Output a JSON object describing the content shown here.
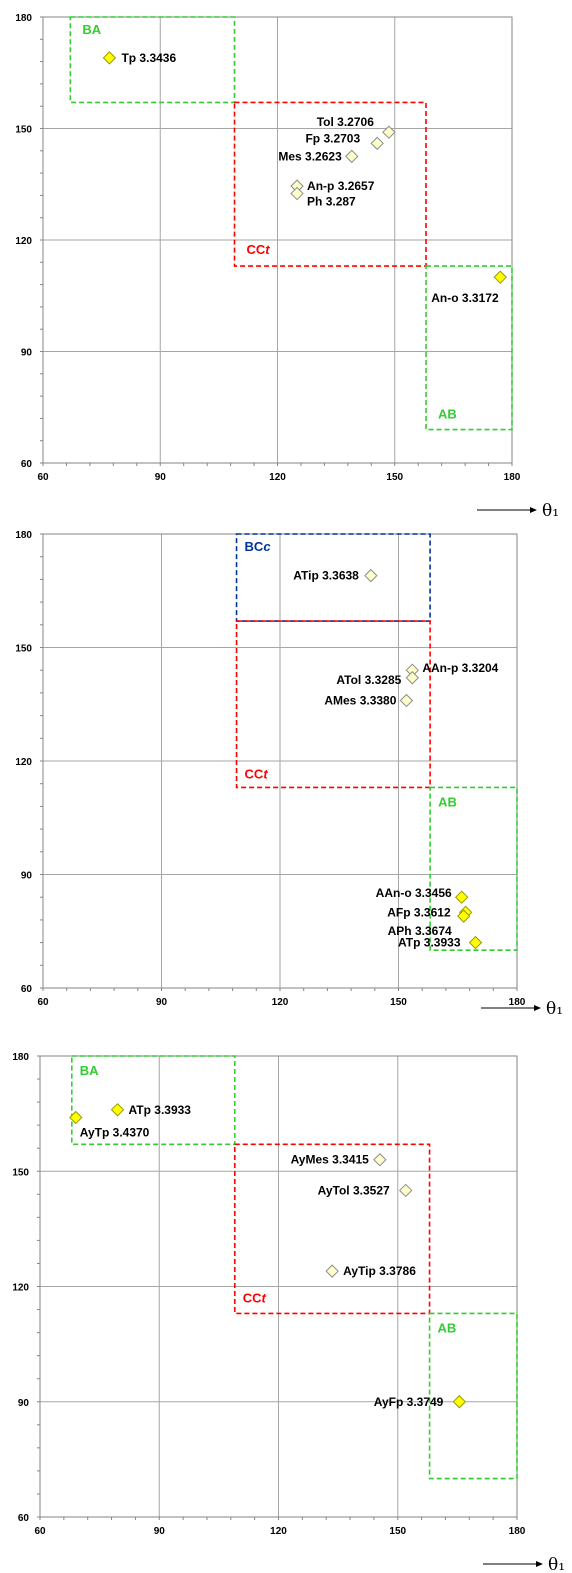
{
  "colors": {
    "grid": "#a6a6a6",
    "frame": "#868686",
    "region_green": "#33cc33",
    "region_red": "#ff0000",
    "region_blue": "#003399",
    "marker_yellow": "#ffff00",
    "marker_yellow_stroke": "#999900",
    "marker_pale": "#ffffcc",
    "marker_pale_stroke": "#8c8c8c"
  },
  "axis_arrow_label": "θ₁",
  "chart_data": [
    {
      "type": "scatter",
      "xlim": [
        60,
        180
      ],
      "ylim": [
        60,
        180
      ],
      "xticks": [
        "60",
        "90",
        "120",
        "150",
        "180"
      ],
      "yticks": [
        "60",
        "90",
        "120",
        "150",
        "180"
      ],
      "grid": true,
      "xlabel": "θ₁",
      "regions": [
        {
          "label": "BA",
          "color": "green",
          "x": [
            67,
            109
          ],
          "y": [
            157,
            180
          ]
        },
        {
          "label": "CCt",
          "color": "red",
          "x": [
            109,
            158
          ],
          "y": [
            113,
            157
          ]
        },
        {
          "label": "AB",
          "color": "green",
          "x": [
            158,
            180
          ],
          "y": [
            69,
            113
          ]
        }
      ],
      "points": [
        {
          "label": "Tp 3.3436",
          "x": 77,
          "y": 169,
          "filled": true
        },
        {
          "label": "Tol 3.2706",
          "x": 148.5,
          "y": 149,
          "filled": false
        },
        {
          "label": "Fp 3.2703",
          "x": 145.5,
          "y": 146,
          "filled": false
        },
        {
          "label": "Mes 3.2623",
          "x": 139,
          "y": 142.5,
          "filled": false
        },
        {
          "label": "An-p 3.2657",
          "x": 125,
          "y": 134.5,
          "filled": false
        },
        {
          "label": "Ph 3.287",
          "x": 125,
          "y": 132.5,
          "filled": false
        },
        {
          "label": "An-o 3.3172",
          "x": 177,
          "y": 110,
          "filled": true
        }
      ]
    },
    {
      "type": "scatter",
      "xlim": [
        60,
        180
      ],
      "ylim": [
        60,
        180
      ],
      "xticks": [
        "60",
        "90",
        "120",
        "150",
        "180"
      ],
      "yticks": [
        "60",
        "90",
        "120",
        "150",
        "180"
      ],
      "grid": true,
      "xlabel": "θ₁",
      "regions": [
        {
          "label": "BCc",
          "color": "blue",
          "x": [
            109,
            158
          ],
          "y": [
            157,
            180
          ]
        },
        {
          "label": "CCt",
          "color": "red",
          "x": [
            109,
            158
          ],
          "y": [
            113,
            157
          ]
        },
        {
          "label": "AB",
          "color": "green",
          "x": [
            158,
            180
          ],
          "y": [
            70,
            113
          ]
        }
      ],
      "points": [
        {
          "label": "ATip 3.3638",
          "x": 143,
          "y": 169,
          "filled": false
        },
        {
          "label": "AAn-p 3.3204",
          "x": 153.5,
          "y": 144,
          "filled": false
        },
        {
          "label": "ATol 3.3285",
          "x": 153.5,
          "y": 142,
          "filled": false
        },
        {
          "label": "AMes 3.3380",
          "x": 152,
          "y": 136,
          "filled": false
        },
        {
          "label": "AAn-o 3.3456",
          "x": 166,
          "y": 84,
          "filled": true
        },
        {
          "label": "AFp 3.3612",
          "x": 167,
          "y": 80,
          "filled": true
        },
        {
          "label": "APh 3.3674",
          "x": 166.5,
          "y": 79,
          "filled": true
        },
        {
          "label": "ATp 3.3933",
          "x": 169.5,
          "y": 72,
          "filled": true
        }
      ]
    },
    {
      "type": "scatter",
      "xlim": [
        60,
        180
      ],
      "ylim": [
        60,
        180
      ],
      "xticks": [
        "60",
        "90",
        "120",
        "150",
        "180"
      ],
      "yticks": [
        "60",
        "90",
        "120",
        "150",
        "180"
      ],
      "grid": true,
      "xlabel": "θ₁",
      "regions": [
        {
          "label": "BA",
          "color": "green",
          "x": [
            68,
            109
          ],
          "y": [
            157,
            180
          ]
        },
        {
          "label": "CCt",
          "color": "red",
          "x": [
            109,
            158
          ],
          "y": [
            113,
            157
          ]
        },
        {
          "label": "AB",
          "color": "green",
          "x": [
            158,
            180
          ],
          "y": [
            70,
            113
          ]
        }
      ],
      "points": [
        {
          "label": "ATp 3.3933",
          "x": 79.5,
          "y": 166,
          "filled": true
        },
        {
          "label": "AyTp 3.4370",
          "x": 69,
          "y": 164,
          "filled": true
        },
        {
          "label": "AyMes 3.3415",
          "x": 145.5,
          "y": 153,
          "filled": false
        },
        {
          "label": "AyTol 3.3527",
          "x": 152,
          "y": 145,
          "filled": false
        },
        {
          "label": "AyTip 3.3786",
          "x": 133.5,
          "y": 124,
          "filled": false
        },
        {
          "label": "AyFp 3.3749",
          "x": 165.5,
          "y": 90,
          "filled": true
        }
      ]
    }
  ]
}
